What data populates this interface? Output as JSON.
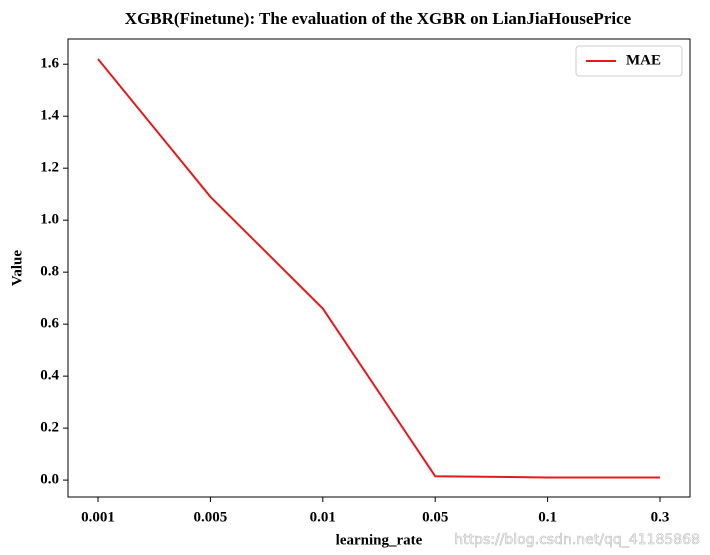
{
  "chart_data": {
    "type": "line",
    "title": "XGBR(Finetune): The evaluation of the XGBR on LianJiaHousePrice",
    "x_label": "learning_rate",
    "y_label": "Value",
    "categories": [
      "0.001",
      "0.005",
      "0.01",
      "0.05",
      "0.1",
      "0.3"
    ],
    "series": [
      {
        "name": "MAE",
        "color": "#e41a1c",
        "values": [
          1.62,
          1.09,
          0.66,
          0.015,
          0.01,
          0.01
        ]
      }
    ],
    "ylim": [
      -0.065,
      1.697
    ],
    "yticks": [
      {
        "value": 0,
        "label": "0.0"
      },
      0.2,
      0.4,
      0.6,
      0.8,
      {
        "value": 1,
        "label": "1.0"
      },
      1.2,
      1.4,
      1.6
    ],
    "legend": "upper right",
    "watermark": "https://blog.csdn.net/qq_41185868"
  }
}
